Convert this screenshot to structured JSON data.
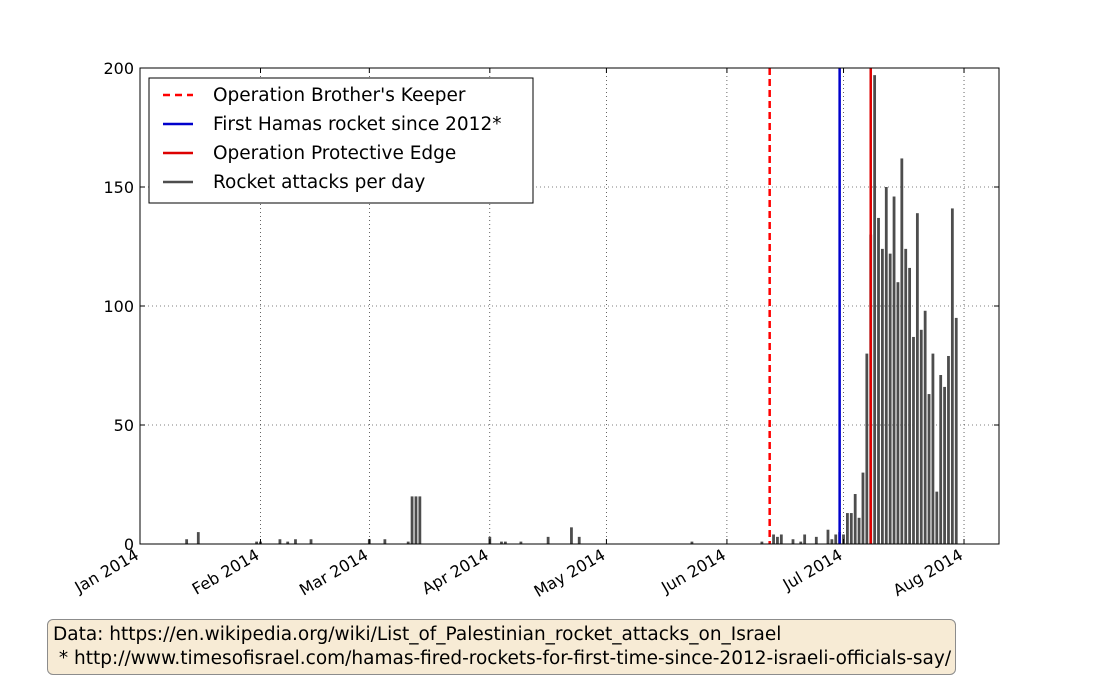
{
  "source_note": {
    "line1": "Data: https://en.wikipedia.org/wiki/List_of_Palestinian_rocket_attacks_on_Israel",
    "line2": " * http://www.timesofisrael.com/hamas-fired-rockets-for-first-time-since-2012-israeli-officials-say/"
  },
  "chart_data": {
    "type": "bar",
    "title": "",
    "xlabel": "",
    "ylabel": "",
    "x_range": [
      "2014-01-01",
      "2014-08-10"
    ],
    "ylim": [
      0,
      200
    ],
    "yticks": [
      0,
      50,
      100,
      150,
      200
    ],
    "xticks": [
      {
        "date": "2014-01-01",
        "label": "Jan 2014"
      },
      {
        "date": "2014-02-01",
        "label": "Feb 2014"
      },
      {
        "date": "2014-03-01",
        "label": "Mar 2014"
      },
      {
        "date": "2014-04-01",
        "label": "Apr 2014"
      },
      {
        "date": "2014-05-01",
        "label": "May 2014"
      },
      {
        "date": "2014-06-01",
        "label": "Jun 2014"
      },
      {
        "date": "2014-07-01",
        "label": "Jul 2014"
      },
      {
        "date": "2014-08-01",
        "label": "Aug 2014"
      }
    ],
    "grid": true,
    "legend_position": "top-left",
    "bar_color": "#4d4d4d",
    "series": [
      {
        "name": "Rocket attacks per day",
        "color": "#4d4d4d",
        "points": [
          {
            "x": "2014-01-13",
            "y": 2
          },
          {
            "x": "2014-01-16",
            "y": 5
          },
          {
            "x": "2014-01-31",
            "y": 1
          },
          {
            "x": "2014-02-01",
            "y": 1
          },
          {
            "x": "2014-02-06",
            "y": 2
          },
          {
            "x": "2014-02-08",
            "y": 1
          },
          {
            "x": "2014-02-10",
            "y": 2
          },
          {
            "x": "2014-02-14",
            "y": 2
          },
          {
            "x": "2014-03-01",
            "y": 2
          },
          {
            "x": "2014-03-05",
            "y": 2
          },
          {
            "x": "2014-03-11",
            "y": 1
          },
          {
            "x": "2014-03-12",
            "y": 20
          },
          {
            "x": "2014-03-13",
            "y": 20
          },
          {
            "x": "2014-03-14",
            "y": 20
          },
          {
            "x": "2014-04-01",
            "y": 3
          },
          {
            "x": "2014-04-04",
            "y": 1
          },
          {
            "x": "2014-04-05",
            "y": 1
          },
          {
            "x": "2014-04-09",
            "y": 1
          },
          {
            "x": "2014-04-16",
            "y": 3
          },
          {
            "x": "2014-04-22",
            "y": 7
          },
          {
            "x": "2014-04-24",
            "y": 3
          },
          {
            "x": "2014-05-23",
            "y": 1
          },
          {
            "x": "2014-06-10",
            "y": 1
          },
          {
            "x": "2014-06-13",
            "y": 4
          },
          {
            "x": "2014-06-14",
            "y": 3
          },
          {
            "x": "2014-06-15",
            "y": 4
          },
          {
            "x": "2014-06-18",
            "y": 2
          },
          {
            "x": "2014-06-20",
            "y": 1
          },
          {
            "x": "2014-06-21",
            "y": 4
          },
          {
            "x": "2014-06-24",
            "y": 3
          },
          {
            "x": "2014-06-27",
            "y": 6
          },
          {
            "x": "2014-06-28",
            "y": 2
          },
          {
            "x": "2014-06-29",
            "y": 4
          },
          {
            "x": "2014-06-30",
            "y": 5
          },
          {
            "x": "2014-07-01",
            "y": 4
          },
          {
            "x": "2014-07-02",
            "y": 13
          },
          {
            "x": "2014-07-03",
            "y": 13
          },
          {
            "x": "2014-07-04",
            "y": 21
          },
          {
            "x": "2014-07-05",
            "y": 11
          },
          {
            "x": "2014-07-06",
            "y": 30
          },
          {
            "x": "2014-07-07",
            "y": 80
          },
          {
            "x": "2014-07-08",
            "y": 130
          },
          {
            "x": "2014-07-09",
            "y": 197
          },
          {
            "x": "2014-07-10",
            "y": 137
          },
          {
            "x": "2014-07-11",
            "y": 124
          },
          {
            "x": "2014-07-12",
            "y": 150
          },
          {
            "x": "2014-07-13",
            "y": 122
          },
          {
            "x": "2014-07-14",
            "y": 146
          },
          {
            "x": "2014-07-15",
            "y": 110
          },
          {
            "x": "2014-07-16",
            "y": 162
          },
          {
            "x": "2014-07-17",
            "y": 124
          },
          {
            "x": "2014-07-18",
            "y": 116
          },
          {
            "x": "2014-07-19",
            "y": 87
          },
          {
            "x": "2014-07-20",
            "y": 139
          },
          {
            "x": "2014-07-21",
            "y": 90
          },
          {
            "x": "2014-07-22",
            "y": 98
          },
          {
            "x": "2014-07-23",
            "y": 63
          },
          {
            "x": "2014-07-24",
            "y": 80
          },
          {
            "x": "2014-07-25",
            "y": 22
          },
          {
            "x": "2014-07-26",
            "y": 71
          },
          {
            "x": "2014-07-27",
            "y": 66
          },
          {
            "x": "2014-07-28",
            "y": 79
          },
          {
            "x": "2014-07-29",
            "y": 141
          },
          {
            "x": "2014-07-30",
            "y": 95
          }
        ]
      }
    ],
    "events": [
      {
        "name": "Operation Brother's Keeper",
        "date": "2014-06-12",
        "color": "#ff0000",
        "style": "dashed"
      },
      {
        "name": "First Hamas rocket since 2012*",
        "date": "2014-06-30",
        "color": "#0000cc",
        "style": "solid"
      },
      {
        "name": "Operation Protective Edge",
        "date": "2014-07-08",
        "color": "#dd0000",
        "style": "solid"
      }
    ]
  }
}
